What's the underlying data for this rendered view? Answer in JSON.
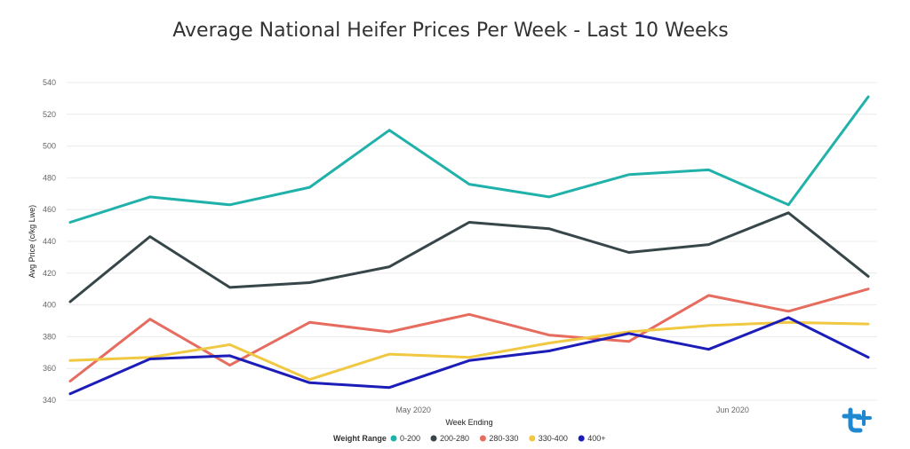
{
  "chart_data": {
    "type": "line",
    "title": "Average National Heifer Prices Per Week - Last 10 Weeks",
    "xlabel": "Week Ending",
    "ylabel": "Avg Price (c/kg Lwe)",
    "ylim": [
      340,
      540
    ],
    "yticks": [
      340,
      360,
      380,
      400,
      420,
      440,
      460,
      480,
      500,
      520,
      540
    ],
    "xtick_labels": [
      "May 2020",
      "Jun 2020"
    ],
    "xtick_positions": [
      4.3,
      8.3
    ],
    "x": [
      0,
      1,
      2,
      3,
      4,
      5,
      6,
      7,
      8,
      9,
      10
    ],
    "grid": true,
    "legend_title": "Weight Range",
    "legend_position": "bottom",
    "series": [
      {
        "name": "0-200",
        "color": "#20B2AA",
        "values": [
          452,
          468,
          463,
          474,
          510,
          476,
          468,
          482,
          485,
          463,
          531
        ]
      },
      {
        "name": "200-280",
        "color": "#374649",
        "values": [
          402,
          443,
          411,
          414,
          424,
          452,
          448,
          433,
          438,
          458,
          418
        ]
      },
      {
        "name": "280-330",
        "color": "#E66C5F",
        "values": [
          352,
          391,
          362,
          389,
          383,
          394,
          381,
          377,
          406,
          396,
          410
        ]
      },
      {
        "name": "330-400",
        "color": "#F0C841",
        "values": [
          365,
          367,
          375,
          353,
          369,
          367,
          376,
          383,
          387,
          389,
          388
        ]
      },
      {
        "name": "400+",
        "color": "#1C1CB8",
        "values": [
          344,
          366,
          368,
          351,
          348,
          365,
          371,
          382,
          372,
          392,
          367
        ]
      }
    ]
  },
  "logo": {
    "name": "brand-logo-icon",
    "text": "t",
    "color": "#1E88D0"
  }
}
